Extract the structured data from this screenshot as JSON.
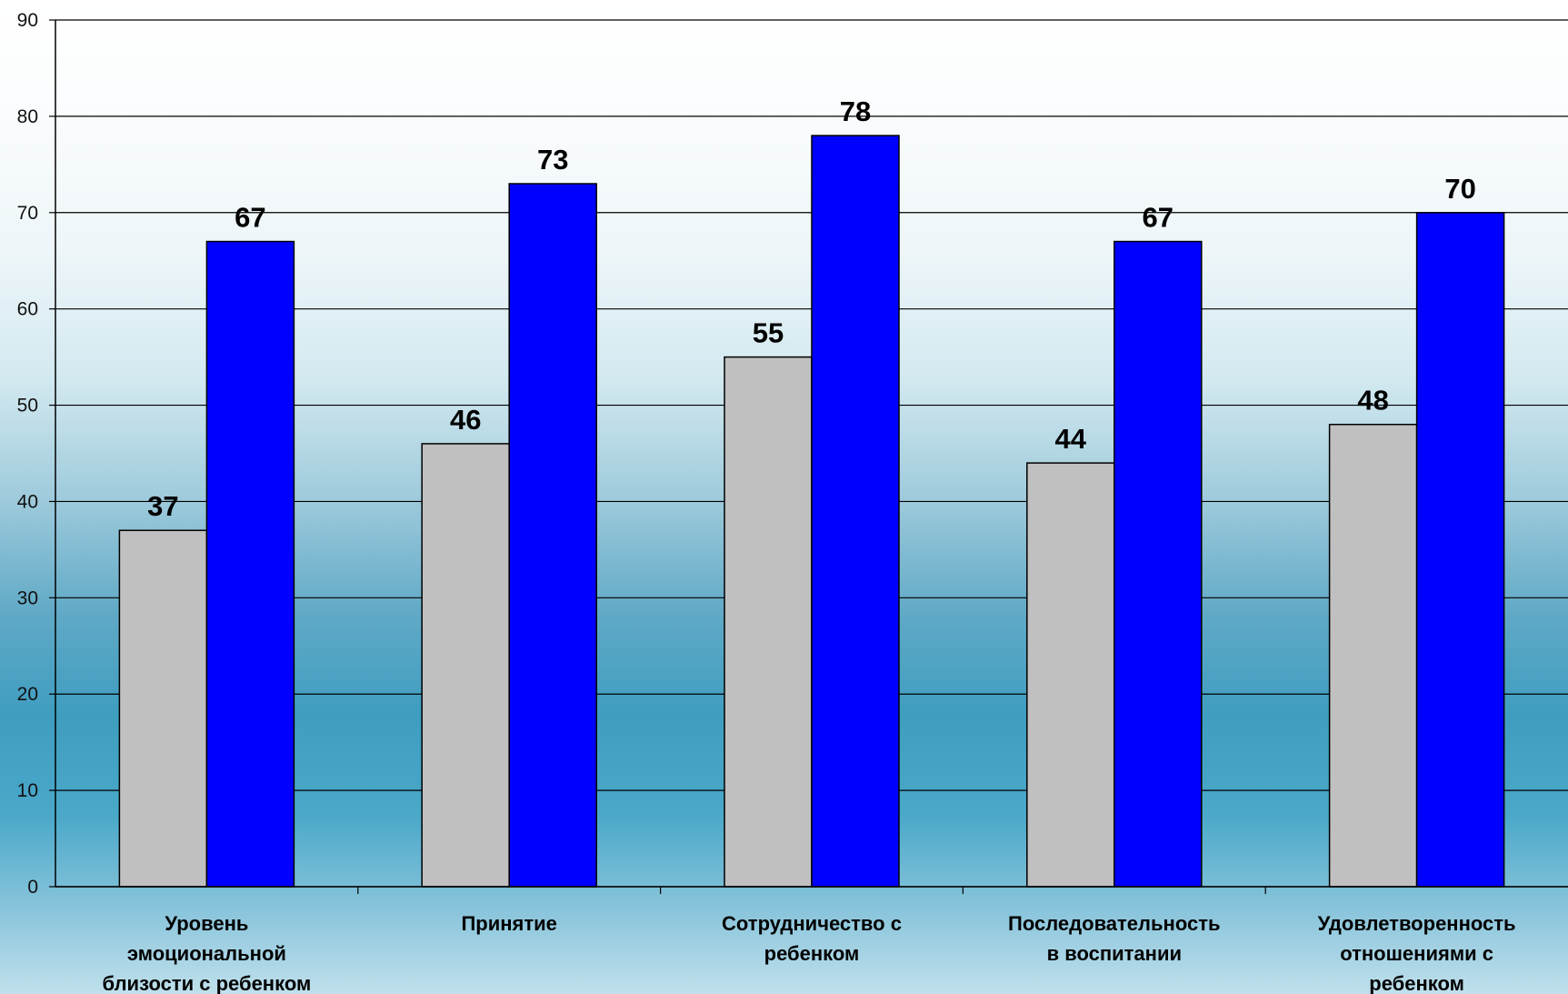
{
  "chart_data": {
    "type": "bar",
    "categories": [
      [
        "Уровень",
        "эмоциональной",
        "близости с ребенком"
      ],
      [
        "Принятие"
      ],
      [
        "Сотрудничество с",
        "ребенком"
      ],
      [
        "Последовательность",
        "в воспитании"
      ],
      [
        "Удовлетворенность",
        "отношениями с",
        "ребенком"
      ]
    ],
    "series": [
      {
        "values": [
          37,
          46,
          55,
          44,
          48
        ],
        "color": "#c0c0c0"
      },
      {
        "values": [
          67,
          73,
          78,
          67,
          70
        ],
        "color": "#0000ff"
      }
    ],
    "ylim": [
      0,
      90
    ],
    "yticks": [
      0,
      10,
      20,
      30,
      40,
      50,
      60,
      70,
      80,
      90
    ],
    "grid": true,
    "title": "",
    "xlabel": "",
    "ylabel": ""
  }
}
